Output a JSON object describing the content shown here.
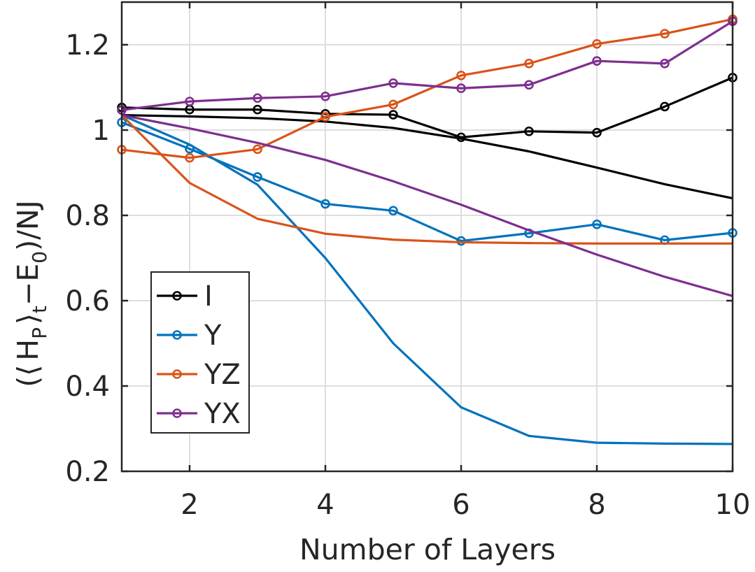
{
  "chart_data": {
    "type": "line",
    "title": "",
    "xlabel": "Number of Layers",
    "ylabel": {
      "open": "(",
      "langle": "⟨",
      "h": "H",
      "h_sub": "P",
      "rangle": "⟩",
      "t_sub": "t",
      "minus_e": "−E",
      "e_sub": "0",
      "close": ")/NJ"
    },
    "xlim": [
      1,
      10
    ],
    "ylim": [
      0.2,
      1.3
    ],
    "x_ticks": [
      2,
      4,
      6,
      8,
      10
    ],
    "x_tick_labels": [
      "2",
      "4",
      "6",
      "8",
      "10"
    ],
    "y_ticks": [
      0.2,
      0.4,
      0.6,
      0.8,
      1.0,
      1.2
    ],
    "y_tick_labels": [
      "0.2",
      "0.4",
      "0.6",
      "0.8",
      "1",
      "1.2"
    ],
    "grid": true,
    "legend_position": "bottom-left",
    "x": [
      1,
      2,
      3,
      4,
      5,
      6,
      7,
      8,
      9,
      10
    ],
    "series": [
      {
        "name": "I",
        "color": "#000000",
        "marker": "circle",
        "values": [
          1.053,
          1.048,
          1.048,
          1.038,
          1.036,
          0.983,
          0.997,
          0.994,
          1.055,
          1.123
        ],
        "smooth_values": [
          1.035,
          1.032,
          1.028,
          1.02,
          1.005,
          0.98,
          0.95,
          0.912,
          0.873,
          0.84
        ]
      },
      {
        "name": "Y",
        "color": "#0072BD",
        "marker": "circle",
        "values": [
          1.018,
          0.956,
          0.89,
          0.827,
          0.811,
          0.74,
          0.758,
          0.779,
          0.742,
          0.759
        ],
        "smooth_values": [
          1.035,
          0.966,
          0.872,
          0.7,
          0.5,
          0.35,
          0.283,
          0.267,
          0.265,
          0.264
        ]
      },
      {
        "name": "YZ",
        "color": "#D95319",
        "marker": "circle",
        "values": [
          0.954,
          0.935,
          0.955,
          1.031,
          1.06,
          1.128,
          1.156,
          1.202,
          1.226,
          1.26
        ],
        "smooth_values": [
          1.035,
          0.876,
          0.792,
          0.757,
          0.743,
          0.737,
          0.735,
          0.734,
          0.734,
          0.734
        ]
      },
      {
        "name": "YX",
        "color": "#7E2F8E",
        "marker": "circle",
        "values": [
          1.047,
          1.067,
          1.075,
          1.079,
          1.11,
          1.098,
          1.106,
          1.162,
          1.156,
          1.255
        ],
        "smooth_values": [
          1.035,
          1.004,
          0.97,
          0.93,
          0.88,
          0.825,
          0.765,
          0.708,
          0.656,
          0.611
        ]
      }
    ]
  }
}
